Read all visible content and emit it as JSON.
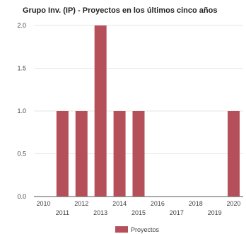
{
  "chart_data": {
    "type": "bar",
    "title": "Grupo Inv. (IP) - Proyectos en los últimos cinco años",
    "xlabel": "",
    "ylabel": "",
    "categories": [
      "2010",
      "2011",
      "2012",
      "2013",
      "2014",
      "2015",
      "2016",
      "2017",
      "2018",
      "2019",
      "2020"
    ],
    "series": [
      {
        "name": "Proyectos",
        "values": [
          0,
          1,
          1,
          2,
          1,
          1,
          0,
          0,
          0,
          0,
          1
        ]
      }
    ],
    "ylim": [
      0,
      2
    ],
    "yticks": [
      "0.0",
      "0.5",
      "1.0",
      "1.5",
      "2.0"
    ],
    "grid": true,
    "legend": "bottom",
    "colors": {
      "bar": "#b5505a",
      "grid": "#e6e6e6",
      "axis": "#555555"
    }
  }
}
